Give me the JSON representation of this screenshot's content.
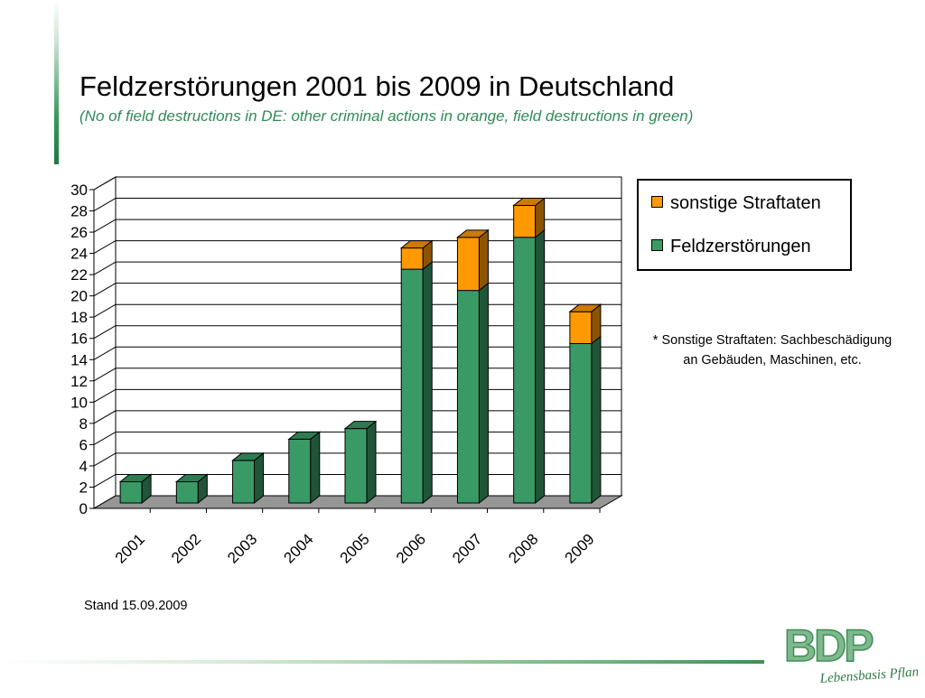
{
  "title": "Feldzerstörungen 2001 bis 2009 in Deutschland",
  "subtitle": "(No of field destructions in DE: other criminal actions in orange, field destructions in green)",
  "note_lines": [
    "* Sonstige Straftaten: Sachbeschädigung",
    "an Gebäuden, Maschinen, etc."
  ],
  "stand": "Stand 15.09.2009",
  "logo": {
    "text": "BDP",
    "tagline": "Lebensbasis Pflanze"
  },
  "colors": {
    "green": "#3a9a66",
    "orange": "#ff9900",
    "floor": "#969696",
    "accent": "#2e8b57"
  },
  "chart_data": {
    "type": "bar",
    "stacked": true,
    "three_d": true,
    "categories": [
      "2001",
      "2002",
      "2003",
      "2004",
      "2005",
      "2006",
      "2007",
      "2008",
      "2009"
    ],
    "series": [
      {
        "name": "Feldzerstörungen",
        "color": "#3a9a66",
        "values": [
          2,
          2,
          4,
          6,
          7,
          22,
          20,
          25,
          15
        ]
      },
      {
        "name": "sonstige Straftaten",
        "color": "#ff9900",
        "values": [
          0,
          0,
          0,
          0,
          0,
          2,
          5,
          3,
          3
        ]
      }
    ],
    "legend_order": [
      "sonstige Straftaten",
      "Feldzerstörungen"
    ],
    "ylim": [
      0,
      30
    ],
    "yticks": [
      0,
      2,
      4,
      6,
      8,
      10,
      12,
      14,
      16,
      18,
      20,
      22,
      24,
      26,
      28,
      30
    ],
    "grid": true,
    "legend_position": "right"
  }
}
